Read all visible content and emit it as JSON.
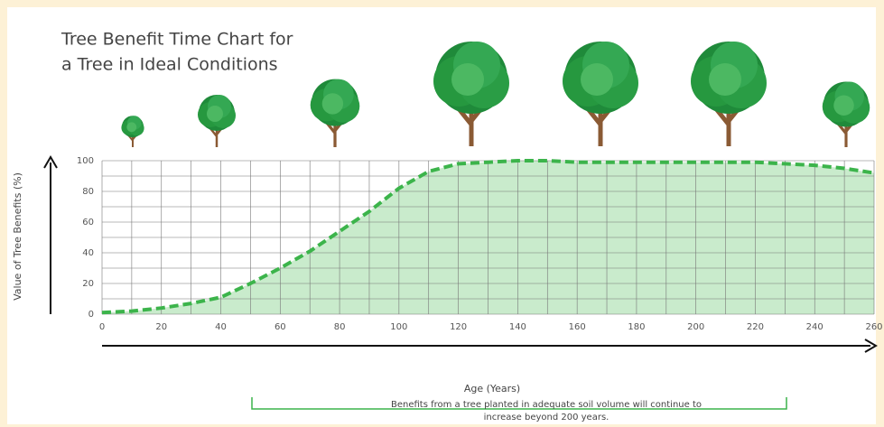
{
  "chart_data": {
    "type": "area",
    "title": [
      "Tree Benefit Time Chart for",
      "a Tree in Ideal Conditions"
    ],
    "x_label": "Age (Years)",
    "y_label": "Value of Tree Benefits (%)",
    "annotation": [
      "Benefits from a tree planted in adequate soil volume will continue to",
      "increase beyond 200 years."
    ],
    "x": [
      0,
      10,
      20,
      30,
      40,
      50,
      60,
      70,
      80,
      90,
      100,
      110,
      120,
      130,
      140,
      150,
      160,
      170,
      180,
      190,
      200,
      210,
      220,
      230,
      240,
      250,
      260
    ],
    "series": [
      {
        "name": "Tree benefits",
        "color": "#3cb44b",
        "values": [
          1,
          2,
          4,
          7,
          11,
          20,
          30,
          41,
          54,
          67,
          82,
          93,
          98,
          99,
          100,
          100,
          99,
          99,
          99,
          99,
          99,
          99,
          99,
          98,
          97,
          95,
          92
        ]
      }
    ],
    "xlim": [
      0,
      260
    ],
    "ylim": [
      0,
      100
    ],
    "xticks": [
      0,
      20,
      40,
      60,
      80,
      100,
      120,
      140,
      160,
      180,
      200,
      220,
      240,
      260
    ],
    "xgrid": [
      10,
      30,
      50,
      70,
      90,
      110,
      130,
      150,
      170,
      190,
      210,
      230,
      250
    ],
    "yticks": [
      0,
      20,
      40,
      60,
      80,
      100
    ],
    "ygrid": [
      10,
      30,
      50,
      70,
      90
    ],
    "grid": true,
    "fill_color": "#c9ebcc"
  }
}
